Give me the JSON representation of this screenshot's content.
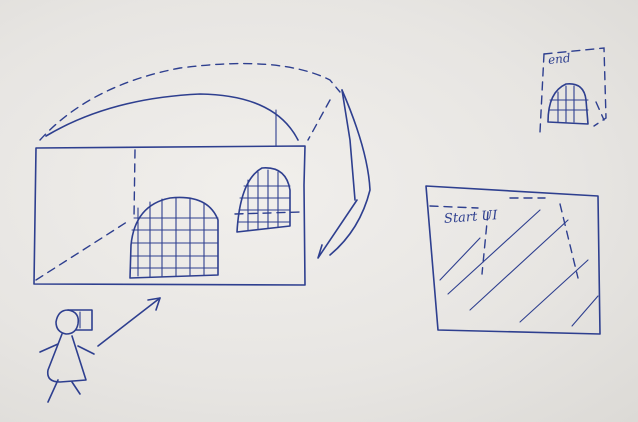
{
  "sketch": {
    "labels": {
      "start": "Start UI",
      "end": "end"
    },
    "ink_color": "#2e3f8f",
    "paper_color": "#ecebe8",
    "icons": [
      "person-icon",
      "arrow-icon"
    ]
  }
}
